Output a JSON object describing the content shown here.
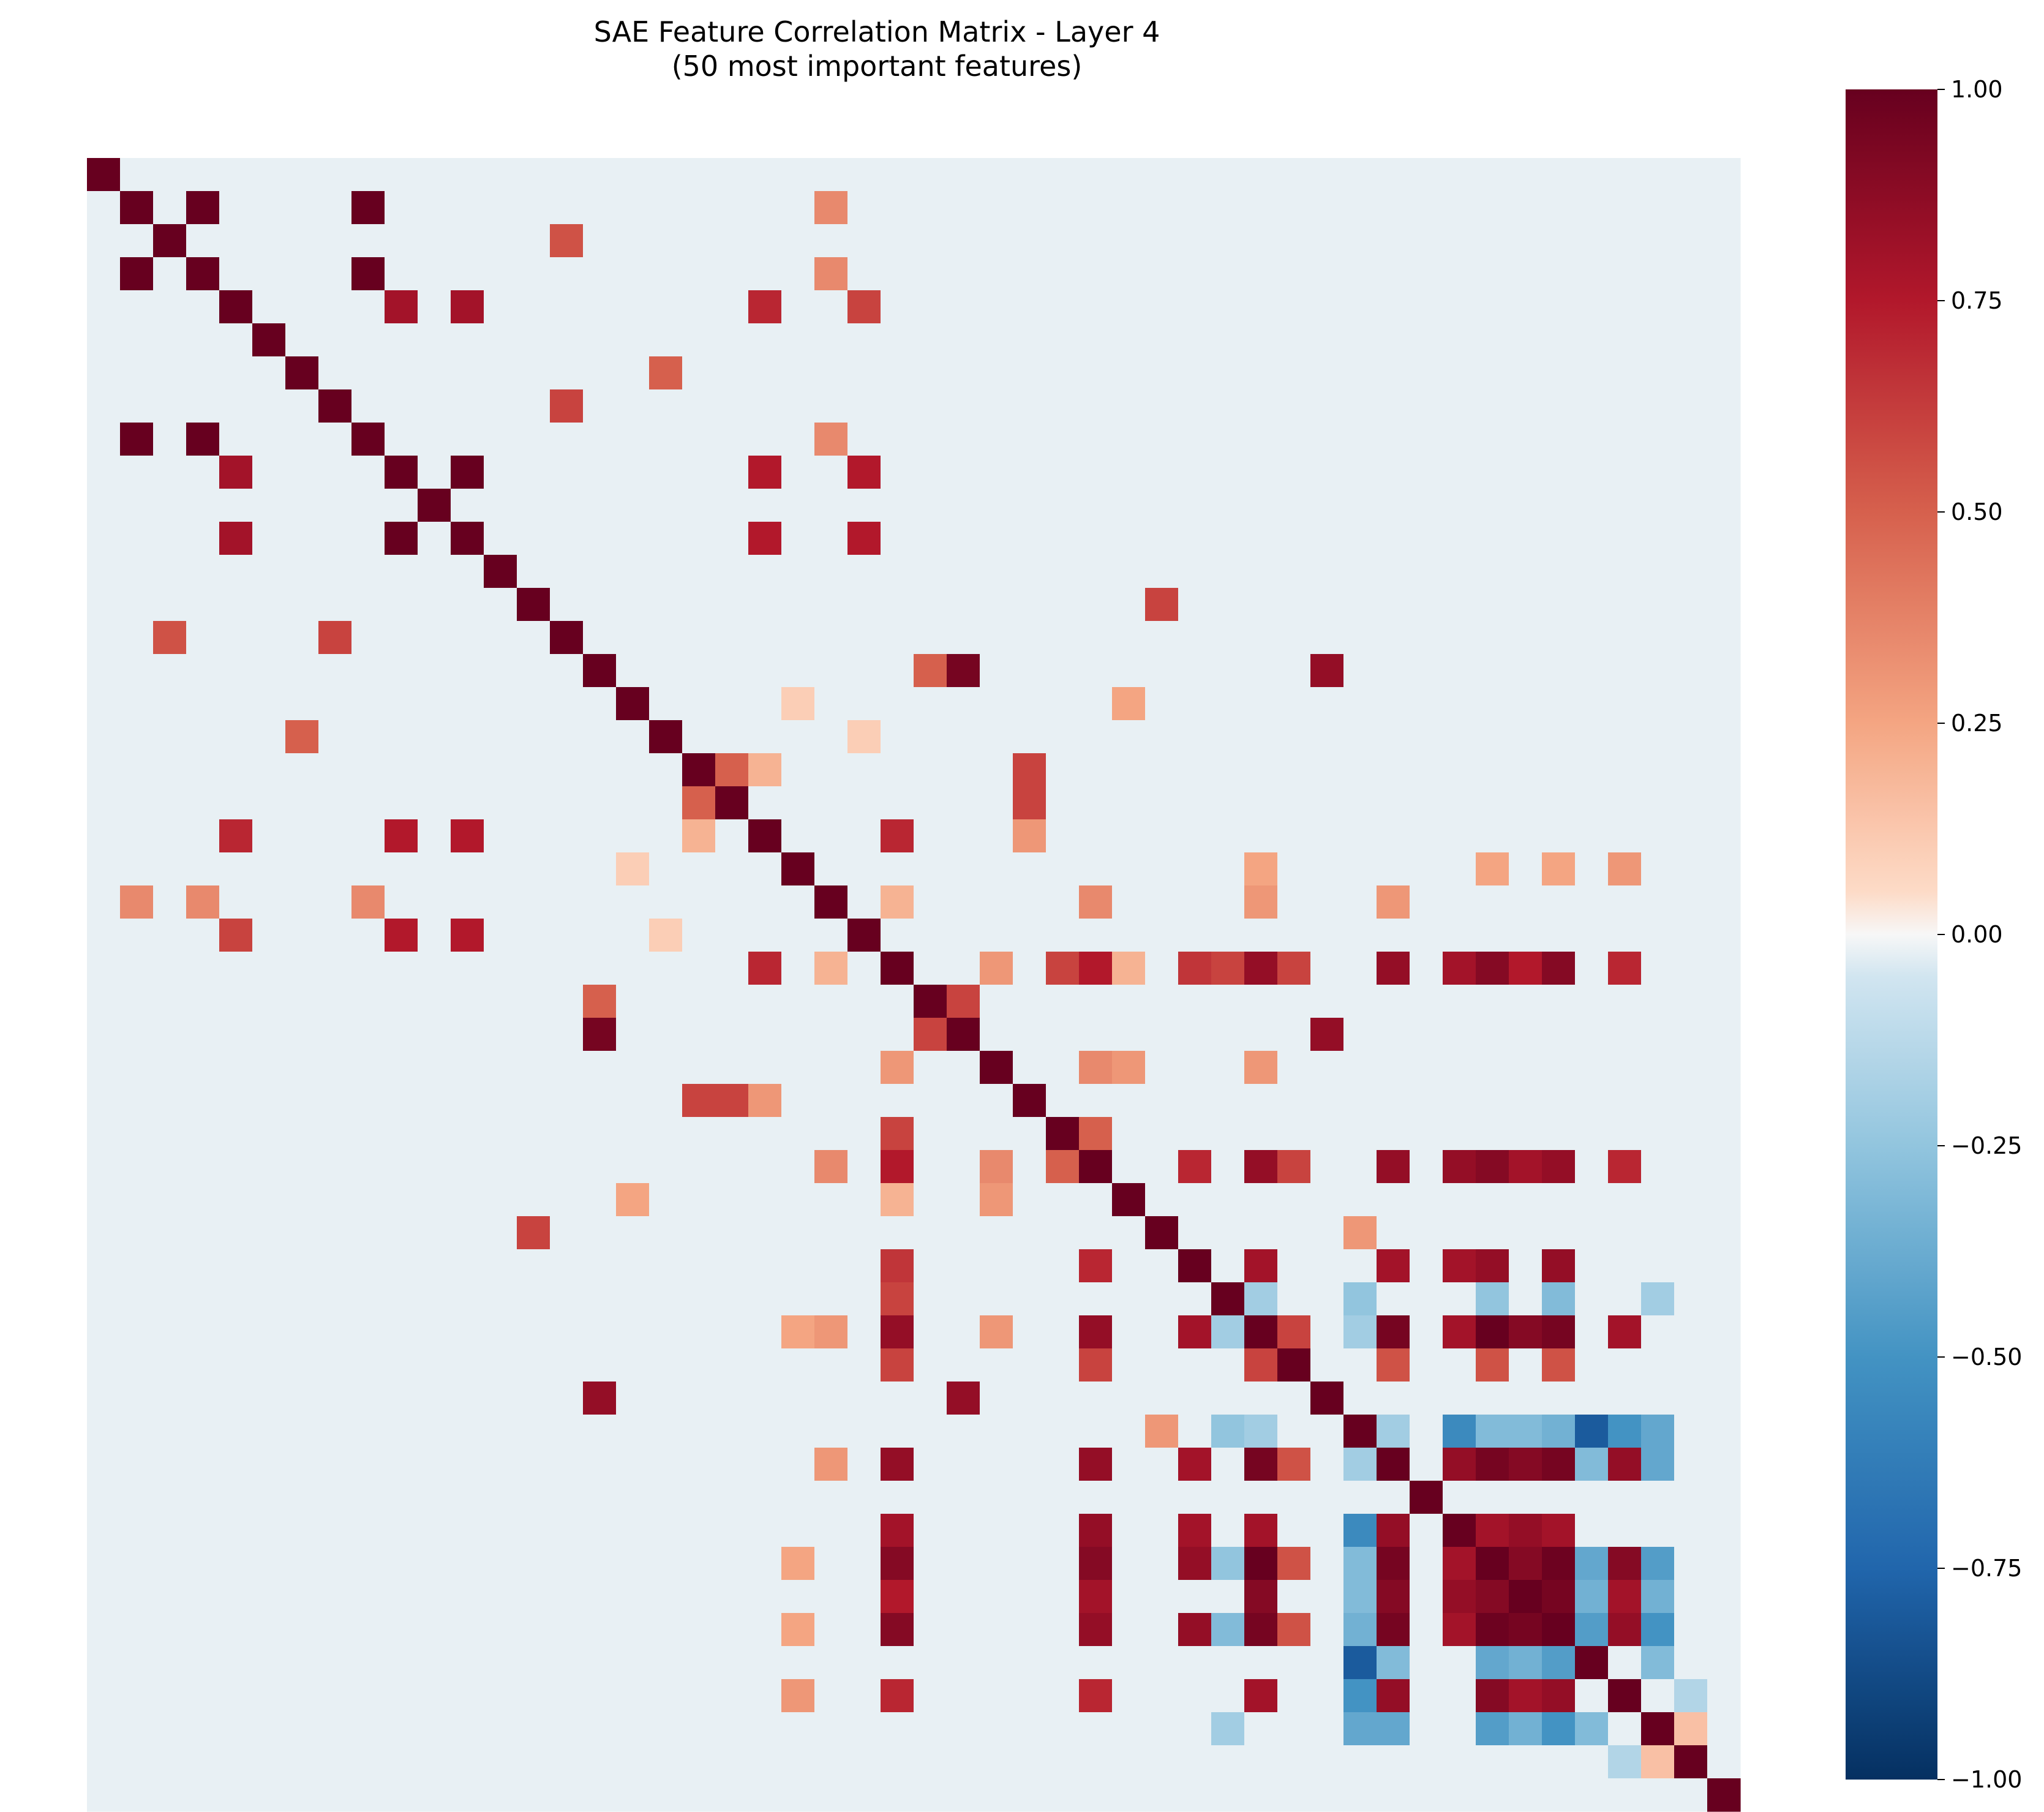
{
  "chart_data": {
    "type": "heatmap",
    "title": "SAE Feature Correlation Matrix - Layer 4",
    "subtitle": "(50 most important features)",
    "n": 50,
    "value_range": [
      -1.0,
      1.0
    ],
    "colormap": "RdBu_r",
    "colorbar": {
      "ticks": [
        1.0,
        0.75,
        0.5,
        0.25,
        0.0,
        -0.25,
        -0.5,
        -0.75,
        -1.0
      ],
      "tick_labels": [
        "1.00",
        "0.75",
        "0.50",
        "0.25",
        "0.00",
        "−0.25",
        "−0.50",
        "−0.75",
        "−1.00"
      ]
    },
    "off_diagonal_default": -0.02,
    "correlations": [
      [
        1,
        3,
        1.0
      ],
      [
        1,
        8,
        1.0
      ],
      [
        3,
        8,
        1.0
      ],
      [
        4,
        9,
        0.8
      ],
      [
        4,
        11,
        0.8
      ],
      [
        9,
        11,
        1.0
      ],
      [
        2,
        14,
        0.55
      ],
      [
        7,
        14,
        0.6
      ],
      [
        6,
        17,
        0.5
      ],
      [
        1,
        22,
        0.35
      ],
      [
        3,
        22,
        0.35
      ],
      [
        8,
        22,
        0.35
      ],
      [
        4,
        20,
        0.7
      ],
      [
        9,
        20,
        0.75
      ],
      [
        11,
        20,
        0.75
      ],
      [
        4,
        23,
        0.6
      ],
      [
        9,
        23,
        0.75
      ],
      [
        11,
        23,
        0.75
      ],
      [
        15,
        26,
        0.95
      ],
      [
        15,
        25,
        0.5
      ],
      [
        25,
        26,
        0.6
      ],
      [
        15,
        37,
        0.85
      ],
      [
        26,
        37,
        0.85
      ],
      [
        18,
        19,
        0.5
      ],
      [
        18,
        28,
        0.6
      ],
      [
        19,
        28,
        0.6
      ],
      [
        18,
        20,
        0.2
      ],
      [
        20,
        28,
        0.3
      ],
      [
        20,
        24,
        0.7
      ],
      [
        13,
        32,
        0.6
      ],
      [
        16,
        31,
        0.25
      ],
      [
        24,
        31,
        0.2
      ],
      [
        24,
        30,
        0.75
      ],
      [
        24,
        29,
        0.6
      ],
      [
        24,
        35,
        0.85
      ],
      [
        24,
        39,
        0.85
      ],
      [
        24,
        42,
        0.9
      ],
      [
        24,
        36,
        0.6
      ],
      [
        24,
        41,
        0.8
      ],
      [
        24,
        43,
        0.75
      ],
      [
        24,
        44,
        0.9
      ],
      [
        24,
        46,
        0.7
      ],
      [
        24,
        33,
        0.65
      ],
      [
        24,
        22,
        0.1
      ],
      [
        24,
        34,
        0.6
      ],
      [
        29,
        30,
        0.5
      ],
      [
        30,
        35,
        0.85
      ],
      [
        30,
        39,
        0.85
      ],
      [
        30,
        42,
        0.9
      ],
      [
        30,
        41,
        0.85
      ],
      [
        30,
        43,
        0.8
      ],
      [
        30,
        44,
        0.85
      ],
      [
        30,
        33,
        0.7
      ],
      [
        30,
        36,
        0.6
      ],
      [
        30,
        46,
        0.7
      ],
      [
        33,
        35,
        0.8
      ],
      [
        33,
        39,
        0.8
      ],
      [
        33,
        41,
        0.8
      ],
      [
        33,
        42,
        0.85
      ],
      [
        33,
        44,
        0.85
      ],
      [
        35,
        39,
        0.95
      ],
      [
        35,
        42,
        1.0
      ],
      [
        35,
        44,
        0.95
      ],
      [
        35,
        41,
        0.8
      ],
      [
        35,
        43,
        0.9
      ],
      [
        35,
        36,
        0.6
      ],
      [
        35,
        46,
        0.8
      ],
      [
        39,
        42,
        0.95
      ],
      [
        39,
        44,
        0.95
      ],
      [
        39,
        41,
        0.85
      ],
      [
        39,
        43,
        0.9
      ],
      [
        39,
        46,
        0.85
      ],
      [
        42,
        44,
        0.98
      ],
      [
        42,
        43,
        0.9
      ],
      [
        42,
        41,
        0.8
      ],
      [
        42,
        46,
        0.9
      ],
      [
        43,
        44,
        0.95
      ],
      [
        43,
        46,
        0.8
      ],
      [
        41,
        43,
        0.85
      ],
      [
        41,
        44,
        0.8
      ],
      [
        44,
        46,
        0.85
      ],
      [
        36,
        42,
        0.55
      ],
      [
        36,
        44,
        0.55
      ],
      [
        36,
        39,
        0.55
      ],
      [
        21,
        35,
        0.25
      ],
      [
        21,
        42,
        0.25
      ],
      [
        21,
        44,
        0.25
      ],
      [
        21,
        46,
        0.3
      ],
      [
        22,
        24,
        0.2
      ],
      [
        22,
        30,
        0.35
      ],
      [
        22,
        35,
        0.3
      ],
      [
        22,
        39,
        0.3
      ],
      [
        27,
        24,
        0.3
      ],
      [
        27,
        30,
        0.35
      ],
      [
        27,
        35,
        0.3
      ],
      [
        27,
        31,
        0.3
      ],
      [
        38,
        45,
        -0.8
      ],
      [
        38,
        41,
        -0.55
      ],
      [
        38,
        46,
        -0.5
      ],
      [
        38,
        47,
        -0.4
      ],
      [
        38,
        42,
        -0.3
      ],
      [
        38,
        44,
        -0.35
      ],
      [
        38,
        39,
        -0.2
      ],
      [
        38,
        43,
        -0.3
      ],
      [
        38,
        35,
        -0.2
      ],
      [
        38,
        34,
        -0.25
      ],
      [
        38,
        32,
        0.3
      ],
      [
        45,
        47,
        -0.3
      ],
      [
        45,
        42,
        -0.4
      ],
      [
        45,
        43,
        -0.35
      ],
      [
        45,
        44,
        -0.45
      ],
      [
        45,
        39,
        -0.3
      ],
      [
        47,
        48,
        0.15
      ],
      [
        46,
        48,
        -0.15
      ],
      [
        44,
        47,
        -0.5
      ],
      [
        42,
        47,
        -0.45
      ],
      [
        39,
        47,
        -0.4
      ],
      [
        43,
        47,
        -0.35
      ],
      [
        34,
        35,
        -0.2
      ],
      [
        34,
        42,
        -0.25
      ],
      [
        34,
        44,
        -0.3
      ],
      [
        34,
        47,
        -0.2
      ],
      [
        16,
        21,
        0.1
      ],
      [
        17,
        23,
        0.1
      ]
    ]
  }
}
